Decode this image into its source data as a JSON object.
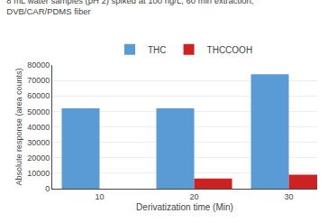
{
  "chart_data": {
    "type": "bar",
    "title": "8 mL water samples (pH 2) spiked at 100 ng/L, 60 min extraction,",
    "subtitle": "DVB/CAR/PDMS fiber",
    "xlabel": "Derivatization time (Min)",
    "ylabel": "Absolute response (area counts)",
    "x": [
      10,
      20,
      30
    ],
    "series": [
      {
        "name": "THC",
        "color": "#5b9bd5",
        "values": [
          52000,
          52000,
          74000
        ]
      },
      {
        "name": "THCCOOH",
        "color": "#cc2222",
        "values": [
          0,
          6500,
          9000
        ]
      }
    ],
    "xlim": [
      5,
      33
    ],
    "xticks": [
      10,
      20,
      30
    ],
    "ylim": [
      0,
      80000
    ],
    "yticks": [
      0,
      10000,
      20000,
      30000,
      40000,
      50000,
      60000,
      70000,
      80000
    ],
    "grid": true,
    "legend": "top"
  }
}
